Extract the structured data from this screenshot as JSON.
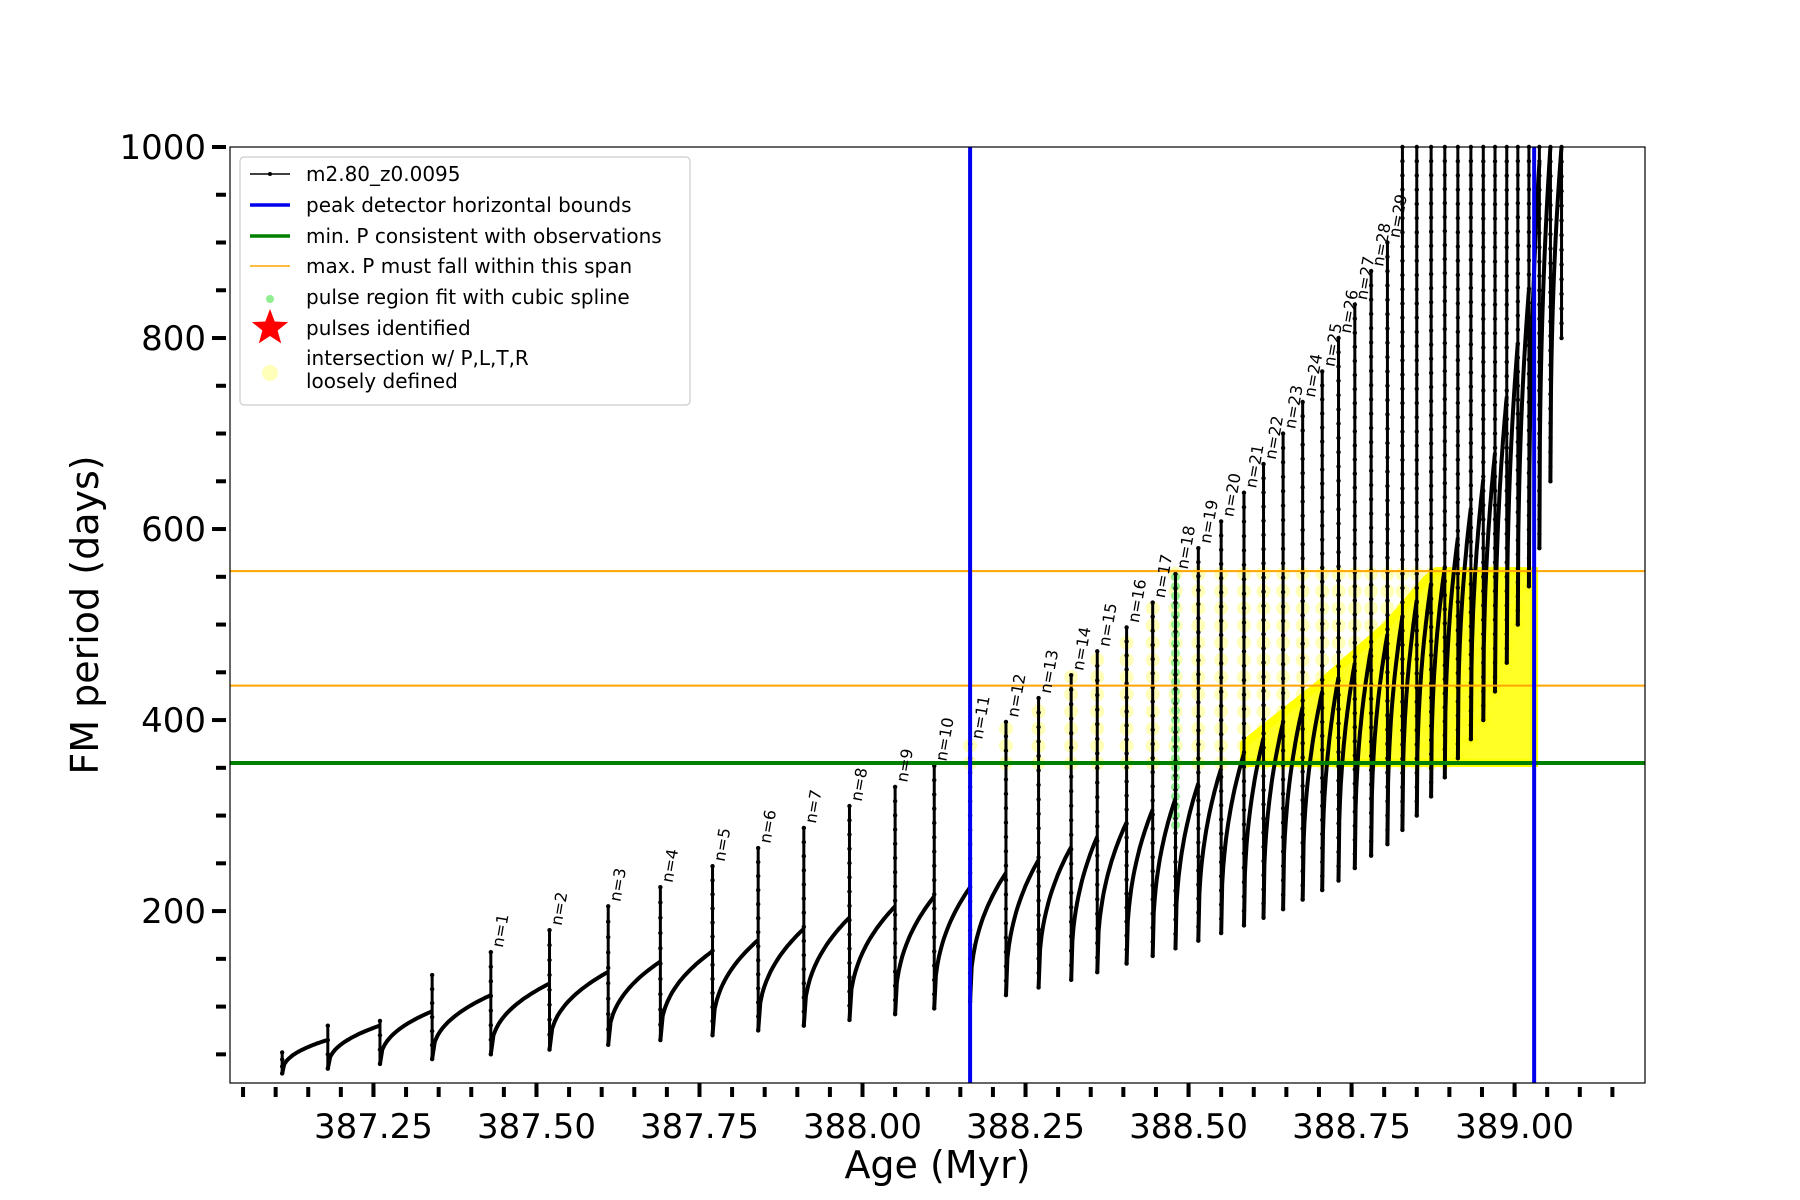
{
  "chart_data": {
    "type": "line",
    "xlabel": "Age (Myr)",
    "ylabel": "FM period (days)",
    "xlim": [
      387.03,
      389.2
    ],
    "ylim": [
      20,
      1000
    ],
    "xticks": [
      387.25,
      387.5,
      387.75,
      388.0,
      388.25,
      388.5,
      388.75,
      389.0
    ],
    "xtick_labels": [
      "387.25",
      "387.50",
      "387.75",
      "388.00",
      "388.25",
      "388.50",
      "388.75",
      "389.00"
    ],
    "yticks": [
      200,
      400,
      600,
      800,
      1000
    ],
    "ytick_labels": [
      "200",
      "400",
      "600",
      "800",
      "1000"
    ],
    "legend_position": "top-left",
    "legend": [
      {
        "label": "m2.80_z0.0095",
        "color": "#000000",
        "kind": "line-marker"
      },
      {
        "label": "peak detector horizontal bounds",
        "color": "#0000ee",
        "kind": "line"
      },
      {
        "label": "min. P consistent with observations",
        "color": "#008000",
        "kind": "line"
      },
      {
        "label": "max. P must fall within this span",
        "color": "#ffa500",
        "kind": "line"
      },
      {
        "label": "pulse region fit with cubic spline",
        "color": "#90ee90",
        "kind": "dot"
      },
      {
        "label": "pulses identified",
        "color": "#ff0000",
        "kind": "star"
      },
      {
        "label": "intersection w/ P,L,T,R",
        "label2": "loosely defined",
        "color": "#ffff66",
        "kind": "circle"
      }
    ],
    "vlines": [
      388.165,
      389.03
    ],
    "min_period_line": 355,
    "max_period_span": [
      436,
      556
    ],
    "pulses": [
      {
        "label": "",
        "age": 387.11,
        "min": 30,
        "max": 52
      },
      {
        "label": "",
        "age": 387.18,
        "min": 35,
        "max": 80
      },
      {
        "label": "",
        "age": 387.26,
        "min": 40,
        "max": 85
      },
      {
        "label": "",
        "age": 387.34,
        "min": 45,
        "max": 133
      },
      {
        "label": "n=1",
        "age": 387.43,
        "min": 50,
        "max": 157
      },
      {
        "label": "n=2",
        "age": 387.52,
        "min": 55,
        "max": 180
      },
      {
        "label": "n=3",
        "age": 387.61,
        "min": 60,
        "max": 205
      },
      {
        "label": "n=4",
        "age": 387.69,
        "min": 65,
        "max": 225
      },
      {
        "label": "n=5",
        "age": 387.77,
        "min": 70,
        "max": 247
      },
      {
        "label": "n=6",
        "age": 387.84,
        "min": 75,
        "max": 266
      },
      {
        "label": "n=7",
        "age": 387.91,
        "min": 80,
        "max": 287
      },
      {
        "label": "n=8",
        "age": 387.98,
        "min": 86,
        "max": 310
      },
      {
        "label": "n=9",
        "age": 388.05,
        "min": 92,
        "max": 330
      },
      {
        "label": "n=10",
        "age": 388.11,
        "min": 98,
        "max": 352
      },
      {
        "label": "n=11",
        "age": 388.165,
        "min": 105,
        "max": 375
      },
      {
        "label": "n=12",
        "age": 388.22,
        "min": 112,
        "max": 398
      },
      {
        "label": "n=13",
        "age": 388.27,
        "min": 120,
        "max": 423
      },
      {
        "label": "n=14",
        "age": 388.32,
        "min": 128,
        "max": 447
      },
      {
        "label": "n=15",
        "age": 388.36,
        "min": 136,
        "max": 472
      },
      {
        "label": "n=16",
        "age": 388.405,
        "min": 145,
        "max": 497
      },
      {
        "label": "n=17",
        "age": 388.445,
        "min": 153,
        "max": 523
      },
      {
        "label": "n=18",
        "age": 388.48,
        "min": 161,
        "max": 553
      },
      {
        "label": "n=19",
        "age": 388.515,
        "min": 169,
        "max": 580
      },
      {
        "label": "n=20",
        "age": 388.55,
        "min": 177,
        "max": 608
      },
      {
        "label": "n=21",
        "age": 388.585,
        "min": 185,
        "max": 638
      },
      {
        "label": "n=22",
        "age": 388.615,
        "min": 193,
        "max": 668
      },
      {
        "label": "n=23",
        "age": 388.645,
        "min": 202,
        "max": 700
      },
      {
        "label": "n=24",
        "age": 388.675,
        "min": 212,
        "max": 733
      },
      {
        "label": "n=25",
        "age": 388.705,
        "min": 222,
        "max": 765
      },
      {
        "label": "n=26",
        "age": 388.73,
        "min": 232,
        "max": 800
      },
      {
        "label": "n=27",
        "age": 388.755,
        "min": 245,
        "max": 835
      },
      {
        "label": "n=28",
        "age": 388.78,
        "min": 258,
        "max": 870
      },
      {
        "label": "n=29",
        "age": 388.805,
        "min": 270,
        "max": 900
      },
      {
        "label": "",
        "age": 388.828,
        "min": 285,
        "max": 1000
      },
      {
        "label": "",
        "age": 388.85,
        "min": 300,
        "max": 1000
      },
      {
        "label": "",
        "age": 388.872,
        "min": 320,
        "max": 1000
      },
      {
        "label": "",
        "age": 388.893,
        "min": 340,
        "max": 1000
      },
      {
        "label": "",
        "age": 388.913,
        "min": 360,
        "max": 1000
      },
      {
        "label": "",
        "age": 388.933,
        "min": 380,
        "max": 1000
      },
      {
        "label": "",
        "age": 388.952,
        "min": 400,
        "max": 1000
      },
      {
        "label": "",
        "age": 388.97,
        "min": 430,
        "max": 1000
      },
      {
        "label": "",
        "age": 388.988,
        "min": 460,
        "max": 1000
      },
      {
        "label": "",
        "age": 389.005,
        "min": 500,
        "max": 1000
      },
      {
        "label": "",
        "age": 389.022,
        "min": 540,
        "max": 1000
      },
      {
        "label": "",
        "age": 389.038,
        "min": 580,
        "max": 1000
      },
      {
        "label": "",
        "age": 389.055,
        "min": 650,
        "max": 1000
      },
      {
        "label": "",
        "age": 389.072,
        "min": 800,
        "max": 1000
      }
    ],
    "trend": [
      {
        "age": 387.11,
        "period": 52
      },
      {
        "age": 387.43,
        "period": 112
      },
      {
        "age": 387.77,
        "period": 158
      },
      {
        "age": 388.05,
        "period": 205
      },
      {
        "age": 388.165,
        "period": 225
      },
      {
        "age": 388.36,
        "period": 278
      },
      {
        "age": 388.48,
        "period": 318
      },
      {
        "age": 388.585,
        "period": 365
      },
      {
        "age": 388.705,
        "period": 430
      },
      {
        "age": 388.805,
        "period": 490
      },
      {
        "age": 388.893,
        "period": 560
      },
      {
        "age": 388.97,
        "period": 680
      },
      {
        "age": 389.022,
        "period": 850
      },
      {
        "age": 389.04,
        "period": 1000
      }
    ]
  }
}
